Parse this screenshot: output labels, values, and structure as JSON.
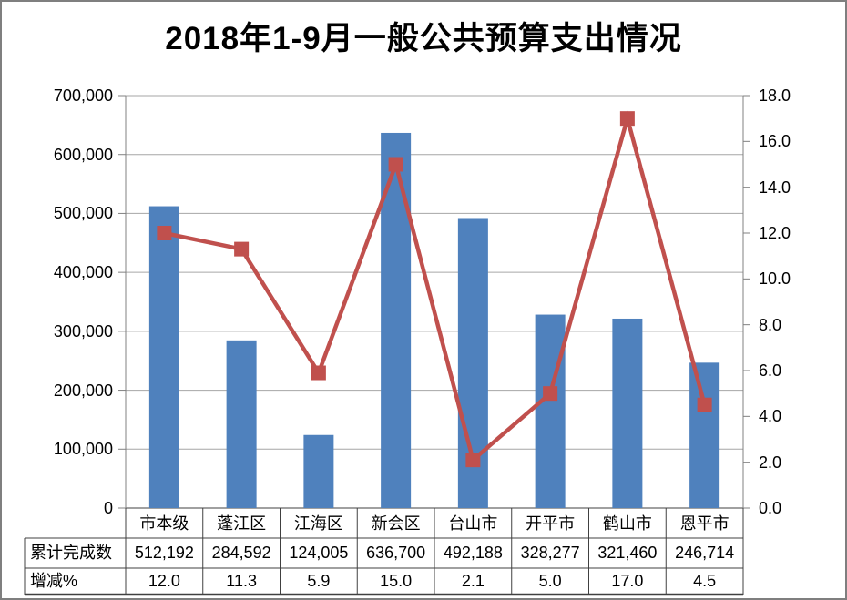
{
  "title": "2018年1-9月一般公共预算支出情况",
  "colors": {
    "bar": "#4F81BD",
    "line": "#C0504D",
    "gridline": "#A6A6A6",
    "axis_line": "#808080",
    "table_border": "#404040",
    "frame_border": "#7F7F7F",
    "background": "#FFFFFF",
    "text": "#000000"
  },
  "chart_data": {
    "type": "bar",
    "combo": "bar+line",
    "title": "2018年1-9月一般公共预算支出情况",
    "categories": [
      "市本级",
      "蓬江区",
      "江海区",
      "新会区",
      "台山市",
      "开平市",
      "鹤山市",
      "恩平市"
    ],
    "series": [
      {
        "name": "累计完成数",
        "type": "bar",
        "axis": "left",
        "color": "#4F81BD",
        "values": [
          512192,
          284592,
          124005,
          636700,
          492188,
          328277,
          321460,
          246714
        ],
        "labels": [
          "512,192",
          "284,592",
          "124,005",
          "636,700",
          "492,188",
          "328,277",
          "321,460",
          "246,714"
        ]
      },
      {
        "name": "增减%",
        "type": "line",
        "axis": "right",
        "color": "#C0504D",
        "values": [
          12.0,
          11.3,
          5.9,
          15.0,
          2.1,
          5.0,
          17.0,
          4.5
        ],
        "labels": [
          "12.0",
          "11.3",
          "5.9",
          "15.0",
          "2.1",
          "5.0",
          "17.0",
          "4.5"
        ]
      }
    ],
    "left_axis": {
      "min": 0,
      "max": 700000,
      "step": 100000,
      "tick_labels": [
        "0",
        "100,000",
        "200,000",
        "300,000",
        "400,000",
        "500,000",
        "600,000",
        "700,000"
      ]
    },
    "right_axis": {
      "min": 0,
      "max": 18,
      "step": 2,
      "tick_labels": [
        "0.0",
        "2.0",
        "4.0",
        "6.0",
        "8.0",
        "10.0",
        "12.0",
        "14.0",
        "16.0",
        "18.0"
      ]
    },
    "grid": true,
    "legend_position": "none",
    "data_table": true
  }
}
